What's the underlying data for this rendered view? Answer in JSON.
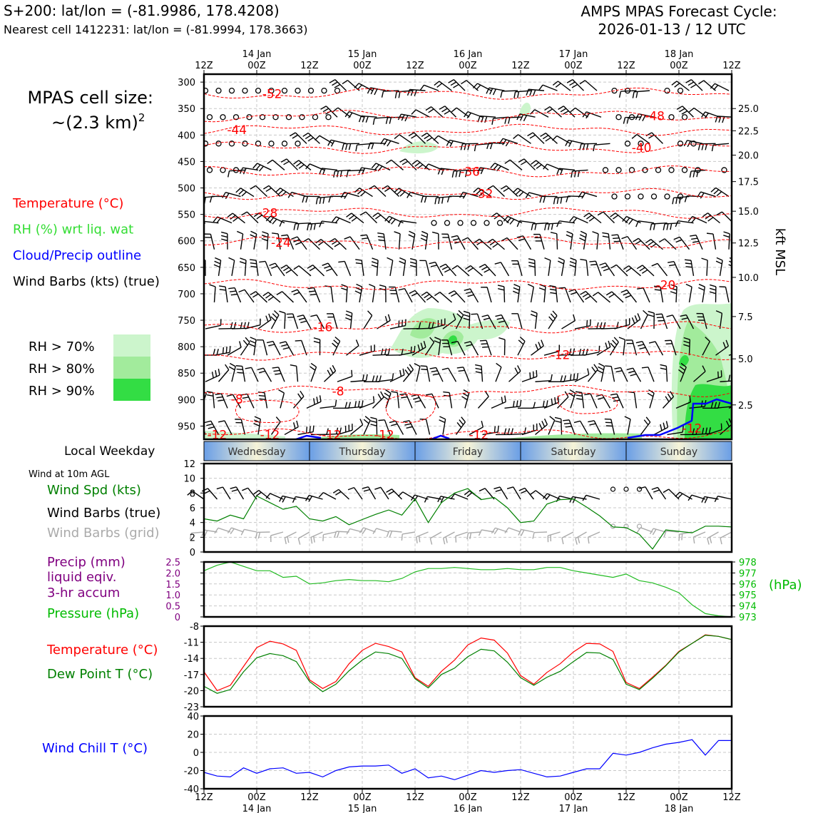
{
  "header": {
    "station_line": "S+200: lat/lon = (-81.9986, 178.4208)",
    "nearest_line": "Nearest cell 1412231: lat/lon = (-81.9994, 178.3663)",
    "cycle_title": "AMPS MPAS Forecast Cycle:",
    "cycle_time": "2026-01-13 / 12 UTC"
  },
  "sidebar": {
    "cell_size_label": "MPAS cell size:",
    "cell_size_value": "~(2.3 km)",
    "cell_size_exp": "2",
    "legend": [
      {
        "label": "Temperature (°C)",
        "color": "#ff0000"
      },
      {
        "label": "RH (%) wrt liq. wat",
        "color": "#33dd33"
      },
      {
        "label": "Cloud/Precip outline",
        "color": "#0000ff"
      },
      {
        "label": "Wind Barbs (kts) (true)",
        "color": "#000000"
      }
    ],
    "rh_bins": [
      {
        "label": "RH > 70%",
        "color": "#ccf5cc"
      },
      {
        "label": "RH > 80%",
        "color": "#a2eb9c"
      },
      {
        "label": "RH > 90%",
        "color": "#33dd44"
      }
    ],
    "weekday_label": "Local Weekday",
    "wind10_label": "Wind at 10m AGL",
    "wind_legend": [
      {
        "label": "Wind Spd (kts)",
        "color": "#008000"
      },
      {
        "label": "Wind Barbs (true)",
        "color": "#000000"
      },
      {
        "label": "Wind Barbs (grid)",
        "color": "#aaaaaa"
      }
    ],
    "precip_legend": [
      {
        "label": "Precip (mm)",
        "color": "#800080"
      },
      {
        "label": "liquid eqiv.",
        "color": "#800080"
      },
      {
        "label": "3-hr accum",
        "color": "#800080"
      },
      {
        "label": "Pressure (hPa)",
        "color": "#00bb00"
      }
    ],
    "temp_legend": [
      {
        "label": "Temperature (°C)",
        "color": "#ff0000"
      },
      {
        "label": "Dew Point T (°C)",
        "color": "#008000"
      }
    ],
    "windchill_label": "Wind Chill T (°C)",
    "windchill_color": "#0000ff"
  },
  "time_axis": {
    "ticks": [
      "12Z",
      "00Z",
      "12Z",
      "00Z",
      "12Z",
      "00Z",
      "12Z",
      "00Z",
      "12Z",
      "00Z",
      "12Z"
    ],
    "dates": [
      "14 Jan",
      "15 Jan",
      "16 Jan",
      "17 Jan",
      "18 Jan"
    ]
  },
  "weekdays": [
    "Wednesday",
    "Thursday",
    "Friday",
    "Saturday",
    "Sunday"
  ],
  "chart_data": [
    {
      "type": "heatmap",
      "name": "time-height cross section",
      "x_range_hours": [
        0,
        120
      ],
      "pressure_levels": [
        "300",
        "350",
        "400",
        "450",
        "500",
        "550",
        "600",
        "650",
        "700",
        "750",
        "800",
        "850",
        "900",
        "950"
      ],
      "kft_ticks": [
        "25.0",
        "22.5",
        "20.0",
        "17.5",
        "15.0",
        "12.5",
        "10.0",
        "7.5",
        "5.0",
        "2.5"
      ],
      "kft_pressure": [
        350,
        392,
        438,
        488,
        544,
        604,
        669,
        743,
        823,
        910
      ],
      "right_axis_label": "kft MSL",
      "isotherm_labels": [
        {
          "text": "-52",
          "t": 15.5,
          "p": 322
        },
        {
          "text": "-48",
          "t": 102.5,
          "p": 364
        },
        {
          "text": "-44",
          "t": 7.5,
          "p": 390
        },
        {
          "text": "-40",
          "t": 99.5,
          "p": 424
        },
        {
          "text": "-36",
          "t": 60.5,
          "p": 469
        },
        {
          "text": "-32",
          "t": 63.5,
          "p": 511
        },
        {
          "text": "-28",
          "t": 14.5,
          "p": 547
        },
        {
          "text": "-24",
          "t": 17.5,
          "p": 603
        },
        {
          "text": "-20",
          "t": 105,
          "p": 683
        },
        {
          "text": "-16",
          "t": 27,
          "p": 763
        },
        {
          "text": "-12",
          "t": 81,
          "p": 815
        },
        {
          "text": "-8",
          "t": 30.5,
          "p": 884
        },
        {
          "text": "-8",
          "t": 7.5,
          "p": 899
        },
        {
          "text": "-12",
          "t": 3,
          "p": 966
        },
        {
          "text": "-12",
          "t": 15,
          "p": 966
        },
        {
          "text": "-12",
          "t": 29,
          "p": 966
        },
        {
          "text": "-12",
          "t": 41,
          "p": 966
        },
        {
          "text": "-12",
          "t": 62.5,
          "p": 966
        },
        {
          "text": "-12",
          "t": 111,
          "p": 954
        }
      ]
    },
    {
      "type": "line",
      "name": "wind speed 10m",
      "ylabel": "Wind Spd (kts)",
      "ylim": [
        0,
        12
      ],
      "yticks": [
        "0",
        "2",
        "4",
        "6",
        "8",
        "10",
        "12"
      ],
      "x_hours": [
        0,
        3,
        6,
        9,
        12,
        15,
        18,
        21,
        24,
        27,
        30,
        33,
        36,
        39,
        42,
        45,
        48,
        51,
        54,
        57,
        60,
        63,
        66,
        69,
        72,
        75,
        78,
        81,
        84,
        87,
        90,
        93,
        96,
        99,
        102,
        105,
        108,
        111,
        114,
        117,
        120
      ],
      "values": [
        4.5,
        4.2,
        5.0,
        4.5,
        7.6,
        6.7,
        5.8,
        6.2,
        4.5,
        4.2,
        4.8,
        3.7,
        4.4,
        5.1,
        5.7,
        5.0,
        7.2,
        4.0,
        6.7,
        8.0,
        8.6,
        7.1,
        7.4,
        6.0,
        4.0,
        4.2,
        6.5,
        7.1,
        7.2,
        6.1,
        4.9,
        3.4,
        3.3,
        2.4,
        0.4,
        3.0,
        2.8,
        2.6,
        3.5,
        3.5,
        3.4
      ]
    },
    {
      "type": "line",
      "name": "surface pressure",
      "ylabel": "Pressure (hPa)",
      "right_unit": "(hPa)",
      "left_ylim": [
        0,
        2.5
      ],
      "left_ticks": [
        "0",
        "0.5",
        "1.0",
        "1.5",
        "2.0",
        "2.5"
      ],
      "right_ylim": [
        973,
        978
      ],
      "right_ticks": [
        "973",
        "974",
        "975",
        "976",
        "977",
        "978"
      ],
      "x_hours": [
        0,
        3,
        6,
        9,
        12,
        15,
        18,
        21,
        24,
        27,
        30,
        33,
        36,
        39,
        42,
        45,
        48,
        51,
        54,
        57,
        60,
        63,
        66,
        69,
        72,
        75,
        78,
        81,
        84,
        87,
        90,
        93,
        96,
        99,
        102,
        105,
        108,
        111,
        114,
        117,
        120
      ],
      "values": [
        977.2,
        977.7,
        978.0,
        977.6,
        977.2,
        977.2,
        976.6,
        976.7,
        976.0,
        976.1,
        976.3,
        976.4,
        976.3,
        976.3,
        976.2,
        976.5,
        977.1,
        977.4,
        977.4,
        977.5,
        977.4,
        977.3,
        977.3,
        977.4,
        977.3,
        977.3,
        977.5,
        977.5,
        977.2,
        977.0,
        976.8,
        976.6,
        976.9,
        976.3,
        976.1,
        975.7,
        975.2,
        974.1,
        973.3,
        973.1,
        973.0
      ]
    },
    {
      "type": "line",
      "name": "temperature and dew point",
      "ylim": [
        -23,
        -8
      ],
      "yticks": [
        "-23",
        "-20",
        "-17",
        "-14",
        "-11",
        "-8"
      ],
      "x_hours": [
        0,
        3,
        6,
        9,
        12,
        15,
        18,
        21,
        24,
        27,
        30,
        33,
        36,
        39,
        42,
        45,
        48,
        51,
        54,
        57,
        60,
        63,
        66,
        69,
        72,
        75,
        78,
        81,
        84,
        87,
        90,
        93,
        96,
        99,
        102,
        105,
        108,
        111,
        114,
        117,
        120
      ],
      "series": [
        {
          "name": "Temperature (°C)",
          "color": "#ff0000",
          "values": [
            -16.5,
            -20.0,
            -19.0,
            -15.5,
            -12.0,
            -10.8,
            -11.3,
            -12.5,
            -18.0,
            -19.6,
            -18.3,
            -15.0,
            -12.5,
            -11.2,
            -11.8,
            -12.8,
            -17.6,
            -19.2,
            -16.4,
            -14.3,
            -11.5,
            -10.2,
            -10.6,
            -13.0,
            -17.2,
            -18.8,
            -16.6,
            -15.0,
            -12.8,
            -11.2,
            -11.3,
            -12.7,
            -18.5,
            -19.6,
            -17.5,
            -15.3,
            -12.7,
            -11.2,
            -9.6,
            -9.9,
            -10.5
          ]
        },
        {
          "name": "Dew Point T (°C)",
          "color": "#008000",
          "values": [
            -19.2,
            -20.5,
            -19.8,
            -16.5,
            -13.9,
            -13.1,
            -13.5,
            -14.6,
            -18.3,
            -20.2,
            -18.8,
            -16.3,
            -14.3,
            -12.8,
            -13.1,
            -14.0,
            -17.8,
            -19.5,
            -17.0,
            -15.8,
            -13.7,
            -12.3,
            -12.6,
            -14.7,
            -17.6,
            -19.0,
            -17.5,
            -16.4,
            -14.6,
            -12.9,
            -13.0,
            -14.2,
            -18.8,
            -19.8,
            -17.7,
            -15.4,
            -12.8,
            -11.2,
            -9.7,
            -9.9,
            -10.5
          ]
        }
      ]
    },
    {
      "type": "line",
      "name": "wind chill",
      "ylabel": "Wind Chill T (°C)",
      "ylim": [
        -40,
        40
      ],
      "yticks": [
        "-40",
        "-20",
        "0",
        "20",
        "40"
      ],
      "x_hours": [
        0,
        3,
        6,
        9,
        12,
        15,
        18,
        21,
        24,
        27,
        30,
        33,
        36,
        39,
        42,
        45,
        48,
        51,
        54,
        57,
        60,
        63,
        66,
        69,
        72,
        75,
        78,
        81,
        84,
        87,
        90,
        93,
        96,
        99,
        102,
        105,
        108,
        111,
        114,
        117,
        120
      ],
      "values": [
        -22,
        -26,
        -27,
        -17,
        -23,
        -18,
        -17,
        -23,
        -22,
        -27,
        -20,
        -16,
        -15,
        -15,
        -14,
        -23,
        -18,
        -28,
        -26,
        -30,
        -25,
        -20,
        -22,
        -20,
        -19,
        -23,
        -27,
        -26,
        -22,
        -18,
        -18,
        -1,
        -3,
        0,
        5,
        9,
        11,
        14,
        -3,
        13,
        13
      ]
    }
  ]
}
